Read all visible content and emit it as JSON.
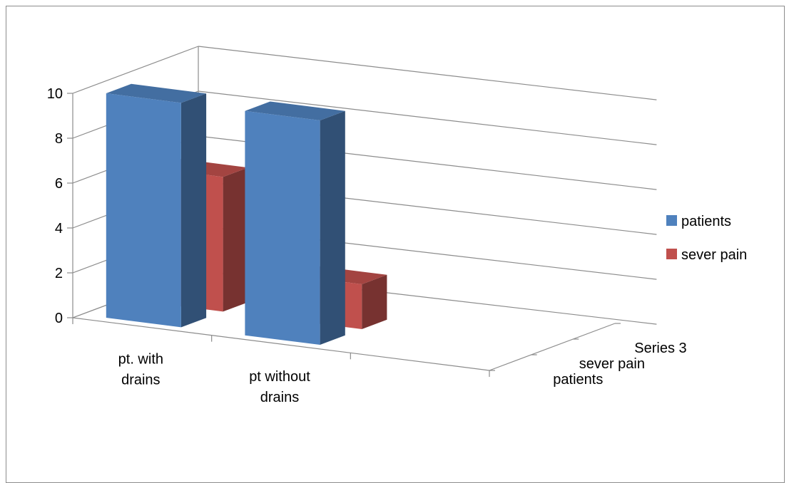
{
  "chart_data": {
    "type": "bar",
    "title": "",
    "categories": [
      "pt. with drains",
      "pt without drains",
      ""
    ],
    "category_labels": [
      [
        "pt. with",
        "drains"
      ],
      [
        "pt without",
        "drains"
      ],
      [
        ""
      ]
    ],
    "depth_labels": [
      "patients",
      "sever pain",
      "Series 3"
    ],
    "y_ticks": [
      "0",
      "2",
      "4",
      "6",
      "8",
      "10"
    ],
    "ylim": [
      0,
      10
    ],
    "series": [
      {
        "name": "patients",
        "color": "#4f81bd",
        "values": [
          10,
          10,
          null
        ]
      },
      {
        "name": "sever pain",
        "color": "#c0504d",
        "values": [
          6,
          2,
          null
        ]
      },
      {
        "name": "Series 3",
        "color": "#9bbb59",
        "values": [
          null,
          null,
          null
        ]
      }
    ],
    "legend": {
      "position": "right",
      "entries": [
        {
          "label": "patients",
          "color": "#4f81bd"
        },
        {
          "label": "sever pain",
          "color": "#c0504d"
        }
      ]
    },
    "grid": true
  }
}
